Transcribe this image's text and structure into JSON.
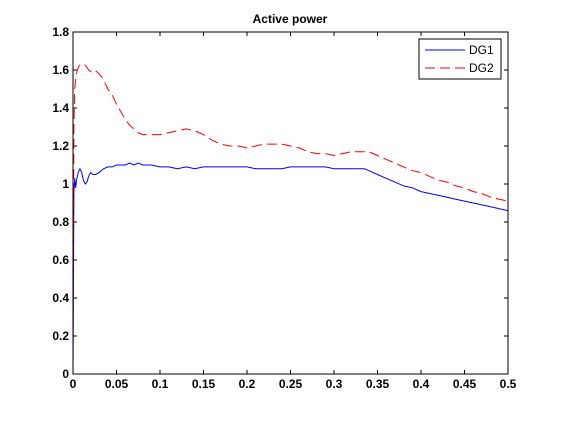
{
  "chart_data": {
    "type": "line",
    "title": "Active power",
    "xlabel": "",
    "ylabel": "",
    "xlim": [
      0,
      0.5
    ],
    "ylim": [
      0,
      1.8
    ],
    "xticks": [
      0,
      0.05,
      0.1,
      0.15,
      0.2,
      0.25,
      0.3,
      0.35,
      0.4,
      0.45,
      0.5
    ],
    "xtick_labels": [
      "0",
      "0.05",
      "0.1",
      "0.15",
      "0.2",
      "0.25",
      "0.3",
      "0.35",
      "0.4",
      "0.45",
      "0.5"
    ],
    "yticks": [
      0,
      0.2,
      0.4,
      0.6,
      0.8,
      1,
      1.2,
      1.4,
      1.6,
      1.8
    ],
    "ytick_labels": [
      "0",
      "0.2",
      "0.4",
      "0.6",
      "0.8",
      "1",
      "1.2",
      "1.4",
      "1.6",
      "1.8"
    ],
    "grid": false,
    "legend_position": "top-right",
    "series": [
      {
        "name": "DG1",
        "color": "#0000ff",
        "style": "solid",
        "x": [
          0,
          0.001,
          0.002,
          0.003,
          0.004,
          0.006,
          0.008,
          0.01,
          0.012,
          0.014,
          0.016,
          0.018,
          0.02,
          0.023,
          0.026,
          0.03,
          0.035,
          0.04,
          0.045,
          0.05,
          0.055,
          0.06,
          0.065,
          0.07,
          0.075,
          0.08,
          0.09,
          0.1,
          0.11,
          0.12,
          0.13,
          0.14,
          0.15,
          0.16,
          0.17,
          0.18,
          0.19,
          0.2,
          0.21,
          0.22,
          0.23,
          0.24,
          0.25,
          0.26,
          0.27,
          0.28,
          0.29,
          0.3,
          0.31,
          0.32,
          0.33,
          0.335,
          0.34,
          0.35,
          0.36,
          0.37,
          0.38,
          0.39,
          0.4,
          0.41,
          0.42,
          0.43,
          0.44,
          0.45,
          0.46,
          0.47,
          0.48,
          0.49,
          0.5
        ],
        "y": [
          0,
          0.95,
          1.03,
          0.98,
          1.02,
          1.06,
          1.08,
          1.06,
          1.02,
          1.0,
          1.01,
          1.04,
          1.06,
          1.05,
          1.05,
          1.06,
          1.08,
          1.09,
          1.09,
          1.1,
          1.1,
          1.1,
          1.11,
          1.1,
          1.11,
          1.1,
          1.1,
          1.09,
          1.09,
          1.08,
          1.09,
          1.08,
          1.09,
          1.09,
          1.09,
          1.09,
          1.09,
          1.09,
          1.08,
          1.08,
          1.08,
          1.08,
          1.09,
          1.09,
          1.09,
          1.09,
          1.09,
          1.08,
          1.08,
          1.08,
          1.08,
          1.08,
          1.07,
          1.05,
          1.03,
          1.01,
          0.99,
          0.98,
          0.96,
          0.95,
          0.94,
          0.93,
          0.92,
          0.91,
          0.9,
          0.89,
          0.88,
          0.87,
          0.86
        ]
      },
      {
        "name": "DG2",
        "color": "#ff0000",
        "style": "dashed",
        "x": [
          0,
          0.001,
          0.002,
          0.003,
          0.004,
          0.005,
          0.007,
          0.009,
          0.011,
          0.013,
          0.015,
          0.018,
          0.021,
          0.025,
          0.03,
          0.035,
          0.04,
          0.045,
          0.05,
          0.055,
          0.06,
          0.065,
          0.07,
          0.075,
          0.08,
          0.09,
          0.1,
          0.11,
          0.12,
          0.13,
          0.14,
          0.15,
          0.16,
          0.17,
          0.18,
          0.19,
          0.2,
          0.21,
          0.22,
          0.23,
          0.24,
          0.25,
          0.26,
          0.27,
          0.28,
          0.29,
          0.3,
          0.31,
          0.32,
          0.33,
          0.34,
          0.35,
          0.36,
          0.37,
          0.38,
          0.39,
          0.4,
          0.41,
          0.42,
          0.43,
          0.44,
          0.45,
          0.46,
          0.47,
          0.48,
          0.49,
          0.5
        ],
        "y": [
          0,
          1.3,
          1.5,
          1.55,
          1.58,
          1.6,
          1.62,
          1.63,
          1.63,
          1.63,
          1.62,
          1.6,
          1.59,
          1.6,
          1.58,
          1.55,
          1.5,
          1.47,
          1.42,
          1.38,
          1.34,
          1.31,
          1.29,
          1.27,
          1.26,
          1.26,
          1.26,
          1.27,
          1.28,
          1.29,
          1.28,
          1.26,
          1.23,
          1.21,
          1.2,
          1.2,
          1.19,
          1.2,
          1.21,
          1.21,
          1.21,
          1.2,
          1.19,
          1.17,
          1.16,
          1.16,
          1.15,
          1.16,
          1.17,
          1.17,
          1.17,
          1.15,
          1.13,
          1.11,
          1.09,
          1.07,
          1.06,
          1.04,
          1.02,
          1.01,
          0.99,
          0.98,
          0.96,
          0.95,
          0.93,
          0.92,
          0.91
        ]
      }
    ]
  }
}
